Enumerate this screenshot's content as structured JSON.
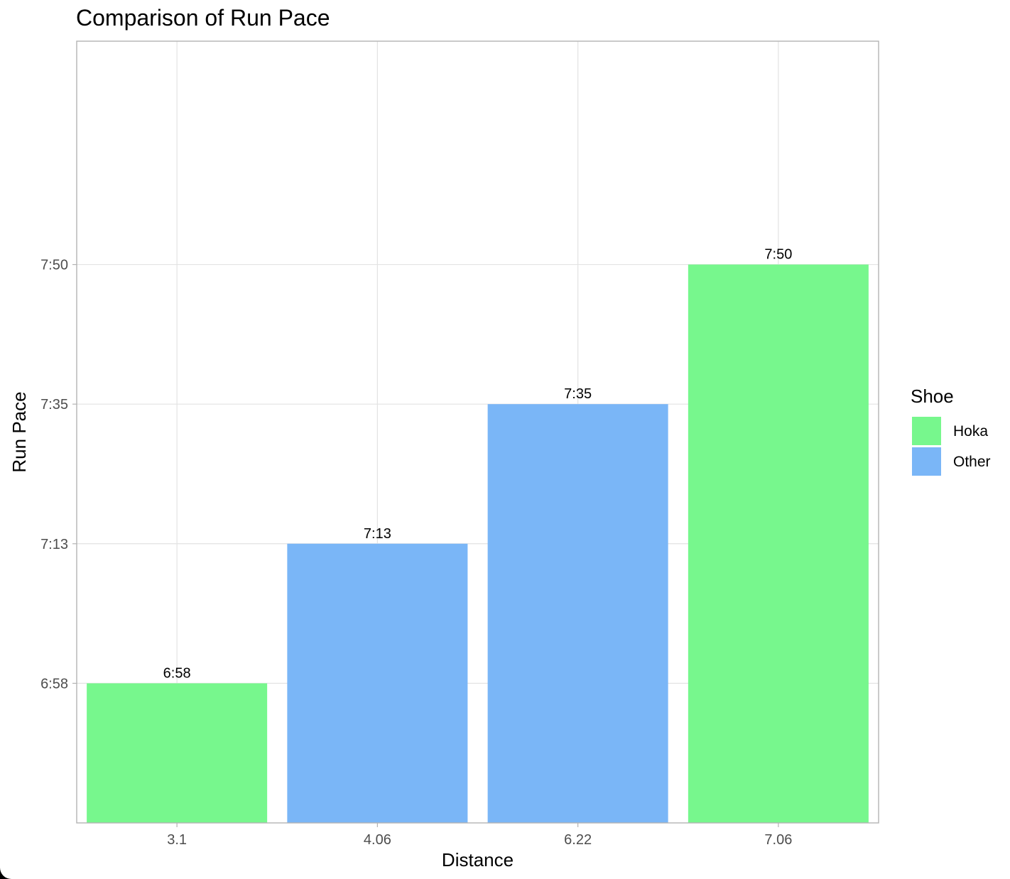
{
  "chart_data": {
    "type": "bar",
    "title": "Comparison of Run Pace",
    "xlabel": "Distance",
    "ylabel": "Run Pace",
    "categories": [
      "3.1",
      "4.06",
      "6.22",
      "7.06"
    ],
    "values": [
      418,
      433,
      455,
      470
    ],
    "value_labels": [
      "6:58",
      "7:13",
      "7:35",
      "7:50"
    ],
    "groups": [
      "Hoka",
      "Other",
      "Other",
      "Hoka"
    ],
    "y_ticks": [
      418,
      433,
      455,
      470
    ],
    "y_tick_labels": [
      "6:58",
      "7:13",
      "7:35",
      "7:50"
    ],
    "ylim_ranks": [
      -1,
      4.6
    ],
    "grid": true,
    "legend": {
      "title": "Shoe",
      "placement": "right",
      "items": [
        {
          "label": "Hoka",
          "color": "#77f78d"
        },
        {
          "label": "Other",
          "color": "#7ab6f7"
        }
      ]
    }
  }
}
